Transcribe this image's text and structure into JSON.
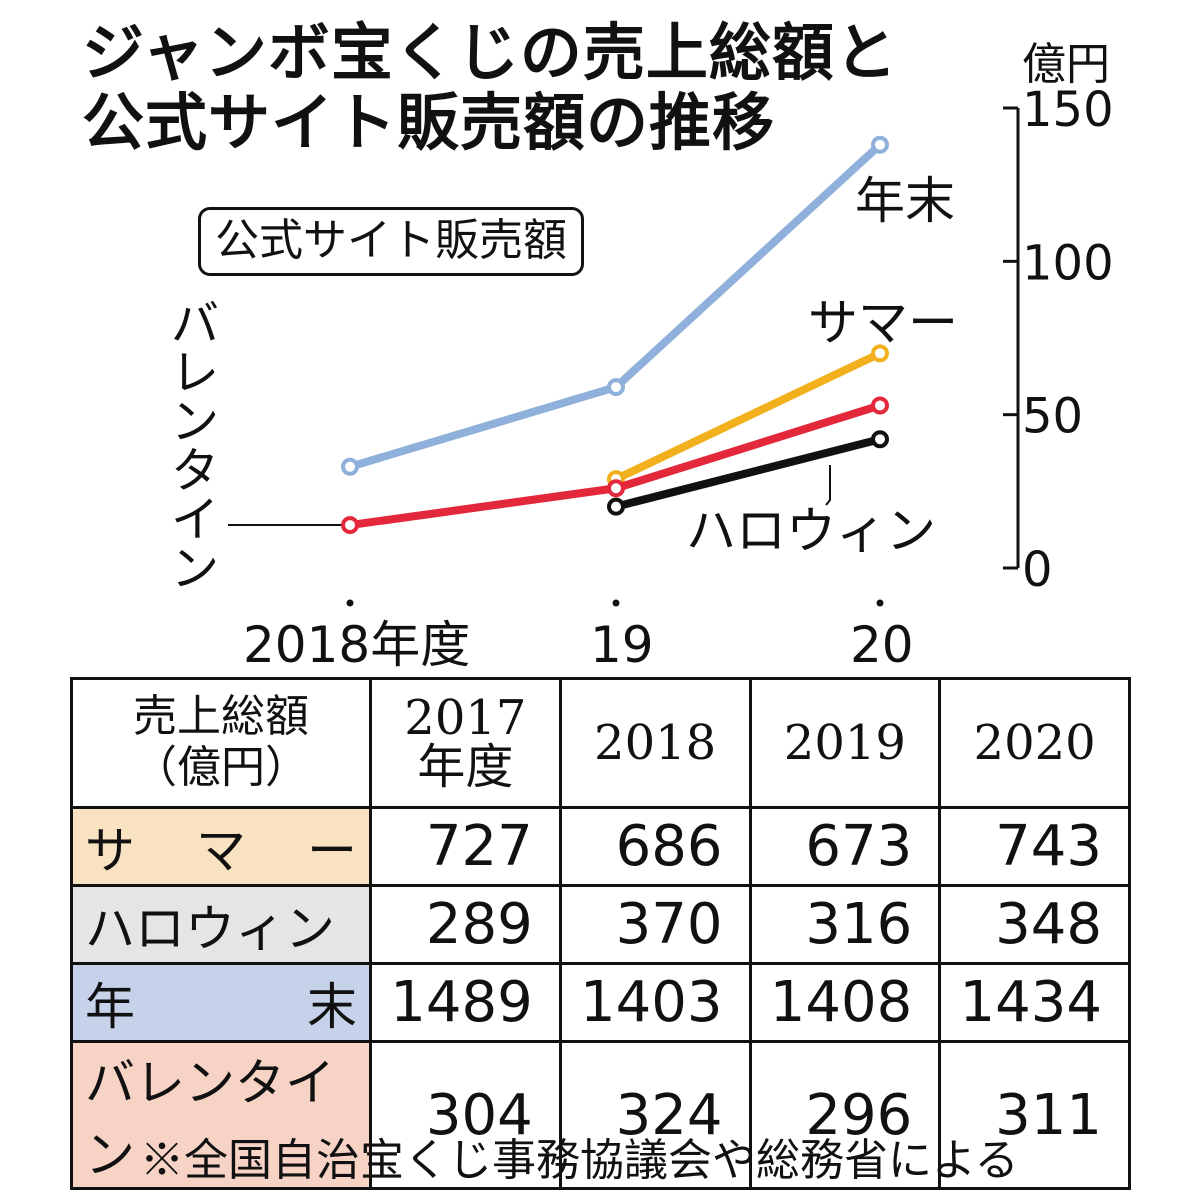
{
  "title": {
    "line1": "ジャンボ宝くじの売上総額と",
    "line2": "公式サイト販売額の推移"
  },
  "chart_data": {
    "type": "line",
    "title": "公式サイト販売額",
    "unit": "億円",
    "x": [
      "2018年度",
      "19",
      "20"
    ],
    "ylim": [
      0,
      150
    ],
    "yticks": [
      0,
      50,
      100,
      150
    ],
    "series": [
      {
        "name": "年末",
        "color": "#8fb0da",
        "values": [
          33,
          59,
          138
        ]
      },
      {
        "name": "サマー",
        "color": "#f2b11c",
        "values": [
          null,
          29,
          70
        ]
      },
      {
        "name": "バレンタイン",
        "color": "#e2283a",
        "values": [
          14,
          26,
          53
        ]
      },
      {
        "name": "ハロウィン",
        "color": "#111111",
        "values": [
          null,
          20,
          42
        ]
      }
    ]
  },
  "table": {
    "corner": {
      "line1": "売上総額",
      "line2": "（億円）"
    },
    "headers": [
      {
        "line1": "2017",
        "line2": "年度"
      },
      {
        "line1": "2018",
        "line2": ""
      },
      {
        "line1": "2019",
        "line2": ""
      },
      {
        "line1": "2020",
        "line2": ""
      }
    ],
    "rows": [
      {
        "label": [
          "サ",
          "マ",
          "ー"
        ],
        "bg": "#f9e2c1",
        "values": [
          "727",
          "686",
          "673",
          "743"
        ]
      },
      {
        "label": [
          "ハロウィン"
        ],
        "bg": "#e4e6e5",
        "values": [
          "289",
          "370",
          "316",
          "348"
        ]
      },
      {
        "label": [
          "年",
          "末"
        ],
        "bg": "#c5d2ea",
        "values": [
          "1489",
          "1403",
          "1408",
          "1434"
        ]
      },
      {
        "label": [
          "バレンタイン"
        ],
        "bg": "#f7d3c6",
        "values": [
          "304",
          "324",
          "296",
          "311"
        ]
      }
    ]
  },
  "note": "※全国自治宝くじ事務協議会や総務省による"
}
